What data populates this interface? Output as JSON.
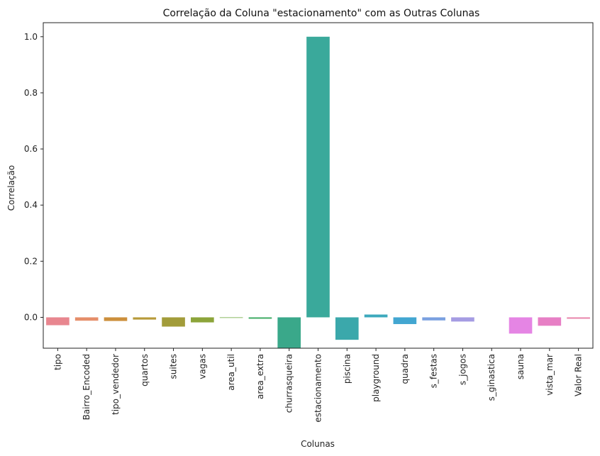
{
  "chart_data": {
    "type": "bar",
    "title": "Correlação da Coluna \"estacionamento\" com as Outras Colunas",
    "xlabel": "Colunas",
    "ylabel": "Correlação",
    "ylim": [
      -0.11,
      1.05
    ],
    "yticks": [
      0.0,
      0.2,
      0.4,
      0.6,
      0.8,
      1.0
    ],
    "ytick_labels": [
      "0.0",
      "0.2",
      "0.4",
      "0.6",
      "0.8",
      "1.0"
    ],
    "grid": false,
    "categories": [
      "tipo",
      "Bairro_Encoded",
      "tipo_vendedor",
      "quartos",
      "suites",
      "vagas",
      "area_util",
      "area_extra",
      "churrasqueira",
      "estacionamento",
      "piscina",
      "playground",
      "quadra",
      "s_festas",
      "s_jogos",
      "s_ginastica",
      "sauna",
      "vista_mar",
      "Valor Real"
    ],
    "values": [
      -0.028,
      -0.012,
      -0.013,
      -0.008,
      -0.033,
      -0.018,
      -0.002,
      -0.005,
      -0.11,
      1.0,
      -0.08,
      0.01,
      -0.024,
      -0.011,
      -0.015,
      0.0,
      -0.058,
      -0.03,
      -0.005
    ],
    "colors": [
      "#e8868f",
      "#e58e6a",
      "#cc8f3c",
      "#b79a3a",
      "#a29c3a",
      "#8ca43a",
      "#6aa83a",
      "#3dab63",
      "#3aa88a",
      "#3aa99b",
      "#3ba8ab",
      "#3da9bd",
      "#42a6d1",
      "#7aa0e0",
      "#a59ce3",
      "#c18ee3",
      "#e585e4",
      "#e77fc5",
      "#e883a9"
    ]
  }
}
